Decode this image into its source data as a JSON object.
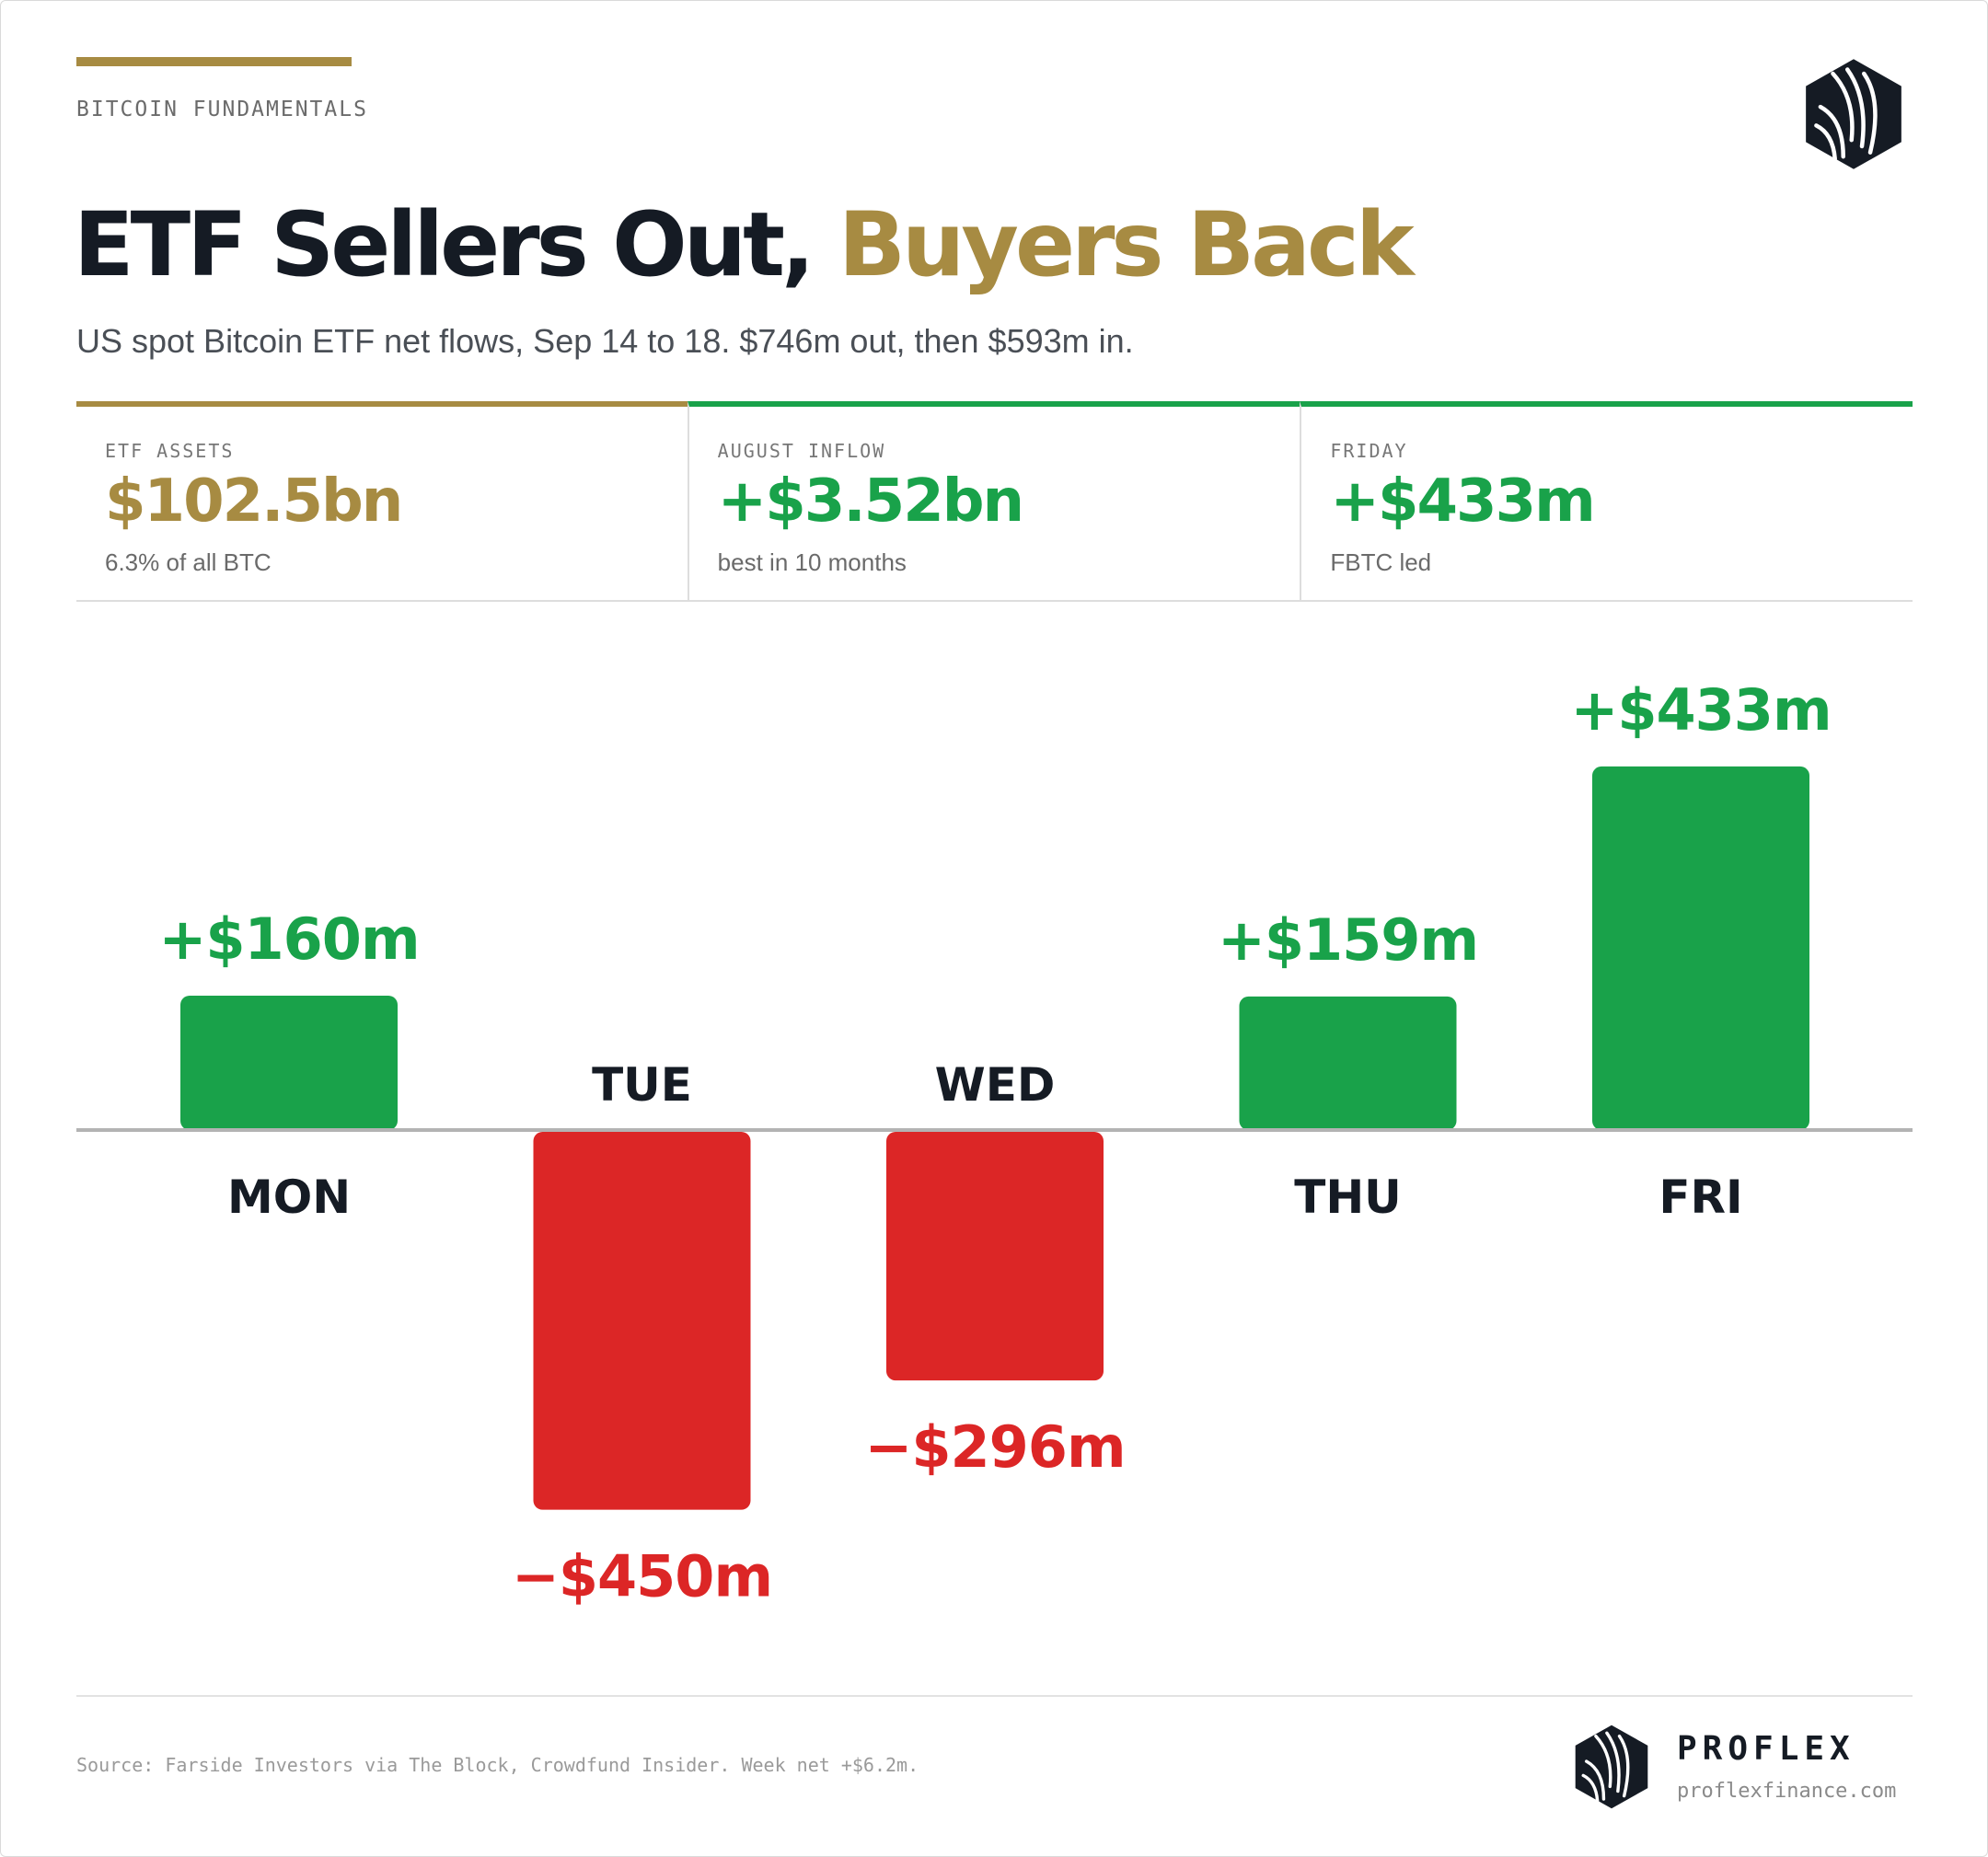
{
  "header": {
    "kicker": "BITCOIN FUNDAMENTALS",
    "title_main": "ETF Sellers Out,",
    "title_accent": "Buyers Back",
    "subtitle": "US spot Bitcoin ETF net flows, Sep 14 to 18. $746m out, then $593m in."
  },
  "stats": [
    {
      "label": "ETF ASSETS",
      "value": "$102.5bn",
      "note": "6.3% of all BTC"
    },
    {
      "label": "AUGUST INFLOW",
      "value": "+$3.52bn",
      "note": "best in 10 months"
    },
    {
      "label": "FRIDAY",
      "value": "+$433m",
      "note": "FBTC led"
    }
  ],
  "chart_data": {
    "type": "bar",
    "categories": [
      "MON",
      "TUE",
      "WED",
      "THU",
      "FRI"
    ],
    "values": [
      160,
      -450,
      -296,
      159,
      433
    ],
    "data_labels": [
      "+$160m",
      "−$450m",
      "−$296m",
      "+$159m",
      "+$433m"
    ],
    "unit": "$m",
    "grid": false,
    "legend": "none"
  },
  "footer": {
    "source": "Source: Farside Investors via The Block, Crowdfund Insider. Week net +$6.2m.",
    "brand": "PROFLEX",
    "url": "proflexfinance.com"
  },
  "colors": {
    "accent": "#a78b42",
    "positive": "#19a24a",
    "negative": "#dc2626",
    "ink": "#151b24",
    "baseline": "#b3b3b3"
  },
  "icons": {
    "logo": "proflex-hexagon-logo-icon"
  }
}
